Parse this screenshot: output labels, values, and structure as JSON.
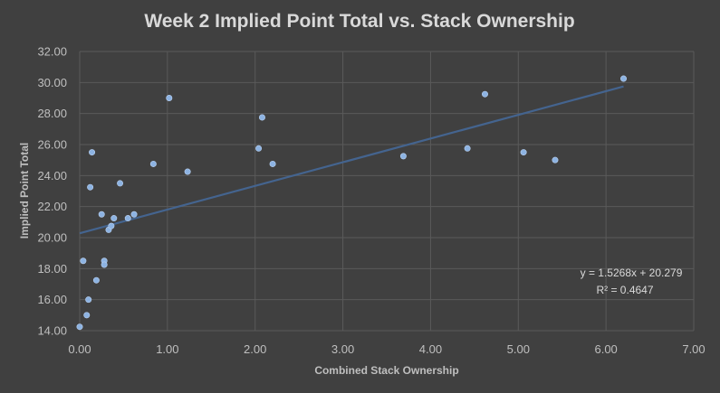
{
  "chart_data": {
    "type": "scatter",
    "title": "Week 2 Implied Point Total vs. Stack Ownership",
    "xlabel": "Combined Stack Ownership",
    "ylabel": "Implied Point Total",
    "xlim": [
      0,
      7
    ],
    "ylim": [
      14,
      32
    ],
    "x_ticks": [
      "0.00",
      "1.00",
      "2.00",
      "3.00",
      "4.00",
      "5.00",
      "6.00",
      "7.00"
    ],
    "y_ticks": [
      "14.00",
      "16.00",
      "18.00",
      "20.00",
      "22.00",
      "24.00",
      "26.00",
      "28.00",
      "30.00",
      "32.00"
    ],
    "grid": "vertical and horizontal major gridlines",
    "marker_color": "#8db3e2",
    "trendline": {
      "type": "linear",
      "slope": 1.5268,
      "intercept": 20.279,
      "x_range": [
        0,
        6.2
      ],
      "color": "#44648f",
      "equation_label": "y = 1.5268x + 20.279",
      "r2_label": "R² = 0.4647"
    },
    "points": [
      {
        "x": 0.0,
        "y": 14.25
      },
      {
        "x": 0.04,
        "y": 18.5
      },
      {
        "x": 0.08,
        "y": 15.0
      },
      {
        "x": 0.1,
        "y": 16.0
      },
      {
        "x": 0.12,
        "y": 23.25
      },
      {
        "x": 0.14,
        "y": 25.5
      },
      {
        "x": 0.19,
        "y": 17.25
      },
      {
        "x": 0.25,
        "y": 21.5
      },
      {
        "x": 0.28,
        "y": 18.5
      },
      {
        "x": 0.28,
        "y": 18.25
      },
      {
        "x": 0.33,
        "y": 20.5
      },
      {
        "x": 0.36,
        "y": 20.75
      },
      {
        "x": 0.39,
        "y": 21.25
      },
      {
        "x": 0.46,
        "y": 23.5
      },
      {
        "x": 0.55,
        "y": 21.25
      },
      {
        "x": 0.62,
        "y": 21.5
      },
      {
        "x": 0.84,
        "y": 24.75
      },
      {
        "x": 1.02,
        "y": 29.0
      },
      {
        "x": 1.23,
        "y": 24.25
      },
      {
        "x": 2.04,
        "y": 25.75
      },
      {
        "x": 2.08,
        "y": 27.75
      },
      {
        "x": 2.2,
        "y": 24.75
      },
      {
        "x": 3.69,
        "y": 25.25
      },
      {
        "x": 4.42,
        "y": 25.75
      },
      {
        "x": 4.62,
        "y": 29.25
      },
      {
        "x": 5.06,
        "y": 25.5
      },
      {
        "x": 5.42,
        "y": 25.0
      },
      {
        "x": 6.2,
        "y": 30.25
      }
    ]
  }
}
